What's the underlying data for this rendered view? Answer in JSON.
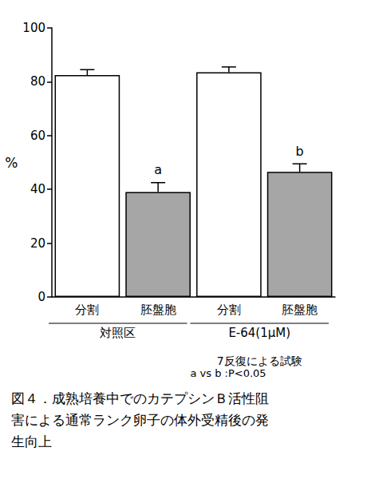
{
  "chart_data": {
    "type": "bar",
    "categories": [
      "分割",
      "胚盤胞",
      "分割",
      "胚盤胞"
    ],
    "values": [
      82.5,
      39,
      83.5,
      46.5
    ],
    "errors": [
      2,
      3.5,
      2,
      3
    ],
    "colors": [
      "#ffffff",
      "#a6a6a6",
      "#ffffff",
      "#a6a6a6"
    ],
    "annotations": [
      null,
      "a",
      null,
      "b"
    ],
    "groups": [
      "対照区",
      "E-64(1μM)"
    ],
    "ylabel": "%",
    "ylim": [
      0,
      100
    ],
    "yticks": [
      0,
      20,
      40,
      60,
      80,
      100
    ],
    "grid": false,
    "notes": [
      "7反復による試験",
      "a vs b :P<0.05"
    ],
    "caption_lines": [
      "図４．成熟培養中でのカテプシンＢ活性阻",
      "害による通常ランク卵子の体外受精後の発",
      "生向上"
    ]
  }
}
